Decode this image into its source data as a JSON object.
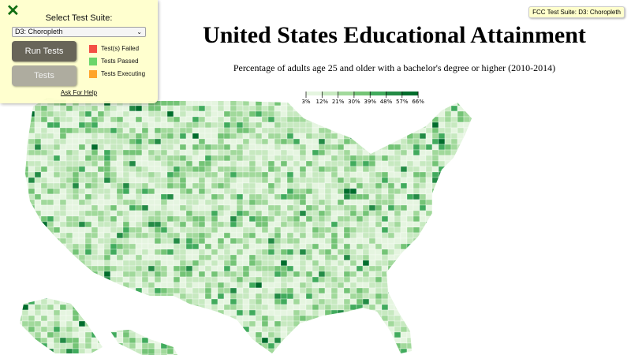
{
  "header": {
    "title": "United States Educational Attainment",
    "description": "Percentage of adults age 25 and older with a bachelor's degree or higher (2010-2014)"
  },
  "legend": {
    "ticks": [
      "3%",
      "12%",
      "21%",
      "30%",
      "39%",
      "48%",
      "57%",
      "66%"
    ],
    "colors": [
      "#e5f5e0",
      "#c7e9c0",
      "#a1d99b",
      "#74c476",
      "#41ab5d",
      "#238b45",
      "#006d2c"
    ]
  },
  "test_panel": {
    "close_icon": "close-x-icon",
    "select_label": "Select Test Suite:",
    "selected_suite": "D3: Choropleth",
    "run_button": "Run Tests",
    "tests_button": "Tests",
    "status_key": [
      {
        "label": "Test(s) Failed",
        "color": "#f44336"
      },
      {
        "label": "Tests Passed",
        "color": "#5fd35f"
      },
      {
        "label": "Tests Executing",
        "color": "#ff9f1a"
      }
    ],
    "help_link": "Ask For Help"
  },
  "badge": "FCC Test Suite: D3: Choropleth"
}
